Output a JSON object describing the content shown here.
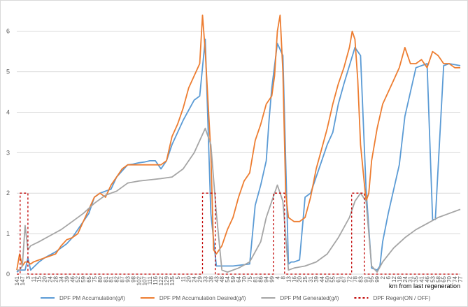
{
  "chart_data": {
    "type": "line",
    "xlabel": "km from last regeneration",
    "ylim": [
      0,
      6.6
    ],
    "y_ticks": [
      0,
      1,
      2,
      3,
      4,
      5,
      6
    ],
    "x_tick_labels": [
      "141",
      "147",
      "3",
      "11",
      "15",
      "20",
      "24",
      "28",
      "34",
      "39",
      "46",
      "52",
      "59",
      "65",
      "75",
      "80",
      "81",
      "81",
      "82",
      "87",
      "93",
      "98",
      "102",
      "107",
      "111",
      "116",
      "122",
      "129",
      "135",
      "5",
      "11",
      "20",
      "24",
      "29",
      "33",
      "38",
      "43",
      "48",
      "54",
      "59",
      "64",
      "70",
      "75",
      "81",
      "86",
      "94",
      "99",
      "4",
      "8",
      "13",
      "16",
      "20",
      "25",
      "31",
      "39",
      "44",
      "50",
      "55",
      "61",
      "67",
      "72",
      "78",
      "83",
      "91",
      "95",
      "99",
      "2",
      "6",
      "12",
      "18",
      "24",
      "31",
      "35",
      "41",
      "46",
      "53",
      "58",
      "65",
      "70",
      "74",
      "77"
    ],
    "legend_position": "bottom",
    "grid": "horizontal",
    "series": [
      {
        "name": "DPF PM Accumulation(g/l)",
        "color": "#5b9bd5",
        "dash": "",
        "x": [
          0,
          0.5,
          1,
          1.5,
          2,
          2.5,
          4,
          5,
          7,
          9,
          10,
          12,
          13,
          14,
          15,
          17,
          18,
          20,
          21,
          22,
          23,
          24,
          25,
          26,
          27,
          28,
          30,
          32,
          33,
          34,
          35,
          36,
          39,
          42,
          43,
          44,
          45,
          45.5,
          46,
          47,
          48,
          49,
          49.5,
          50,
          51,
          52,
          53,
          54,
          56,
          57,
          58,
          59,
          61,
          62,
          63,
          64,
          65,
          65.5,
          66,
          67,
          69,
          70,
          72,
          74,
          75,
          75.5,
          77,
          78,
          80
        ],
        "y": [
          0.05,
          0.1,
          0.1,
          0.1,
          0.4,
          0.1,
          0.3,
          0.4,
          0.55,
          0.75,
          0.9,
          1.3,
          1.5,
          1.9,
          2.0,
          2.1,
          2.4,
          2.7,
          2.72,
          2.75,
          2.77,
          2.8,
          2.8,
          2.6,
          2.8,
          3.2,
          3.8,
          4.3,
          4.4,
          5.8,
          1.5,
          0.2,
          0.2,
          0.25,
          1.7,
          2.2,
          2.8,
          3.8,
          4.6,
          5.7,
          5.4,
          0.25,
          0.3,
          0.3,
          0.35,
          1.9,
          2.0,
          2.4,
          3.2,
          3.5,
          4.2,
          4.7,
          5.6,
          5.4,
          2.1,
          0.15,
          0.1,
          0.2,
          0.8,
          1.5,
          2.7,
          3.9,
          5.1,
          5.2,
          1.35,
          1.35,
          5.15,
          5.2,
          5.15
        ]
      },
      {
        "name": "DPF PM Accumulation Desired(g/l)",
        "color": "#ed7d31",
        "dash": "",
        "x": [
          0,
          0.5,
          1,
          1.5,
          2,
          2.5,
          3,
          4,
          5,
          6,
          7,
          8,
          9,
          10,
          11,
          12,
          13,
          14,
          15,
          16,
          17,
          18,
          19,
          20,
          21,
          22,
          23,
          24,
          25,
          26,
          27,
          28,
          29,
          30,
          31,
          32,
          33,
          33.5,
          34,
          35,
          35.5,
          36,
          37,
          38,
          39,
          40,
          41,
          42,
          43,
          44,
          45,
          46,
          46.5,
          47,
          47.5,
          48,
          48.5,
          49,
          50,
          51,
          52,
          53,
          54,
          55,
          56,
          57,
          58,
          59,
          60,
          60.5,
          61,
          61.5,
          62,
          63,
          63.5,
          64,
          65,
          66,
          67,
          68,
          69,
          70,
          71,
          72,
          73,
          74,
          75,
          76,
          77,
          78,
          79,
          80
        ],
        "y": [
          0.1,
          0.5,
          0.2,
          0.3,
          0.3,
          0.25,
          0.3,
          0.35,
          0.4,
          0.45,
          0.5,
          0.7,
          0.85,
          0.9,
          1.0,
          1.3,
          1.6,
          1.9,
          2.0,
          1.9,
          2.2,
          2.4,
          2.6,
          2.7,
          2.7,
          2.7,
          2.7,
          2.7,
          2.7,
          2.7,
          2.8,
          3.4,
          3.7,
          4.1,
          4.6,
          4.9,
          5.2,
          6.4,
          5.5,
          3.0,
          0.6,
          0.5,
          0.7,
          1.1,
          1.4,
          1.9,
          2.3,
          2.5,
          3.3,
          3.7,
          4.2,
          4.4,
          4.9,
          6.0,
          6.4,
          5.0,
          2.0,
          1.4,
          1.3,
          1.3,
          1.4,
          1.9,
          2.6,
          3.1,
          3.6,
          4.2,
          4.7,
          5.1,
          5.6,
          6.0,
          5.8,
          4.8,
          3.2,
          1.8,
          2.0,
          2.8,
          3.6,
          4.2,
          4.5,
          4.8,
          5.1,
          5.6,
          5.2,
          5.2,
          5.3,
          5.1,
          5.5,
          5.4,
          5.2,
          5.2,
          5.1,
          5.1
        ]
      },
      {
        "name": "DPF PM Generated(g/l)",
        "color": "#a5a5a5",
        "dash": "",
        "x": [
          0,
          0.5,
          1,
          1.5,
          2,
          2.5,
          4,
          6,
          8,
          10,
          12,
          14,
          16,
          18,
          20,
          22,
          24,
          26,
          28,
          30,
          32,
          33,
          34,
          35,
          36,
          37,
          38,
          40,
          42,
          44,
          45,
          46,
          47,
          48,
          49,
          50,
          52,
          54,
          56,
          58,
          60,
          61,
          62,
          63,
          64,
          65,
          66,
          68,
          70,
          72,
          74,
          76,
          78,
          80
        ],
        "y": [
          0.1,
          0.1,
          0.2,
          1.2,
          0.6,
          0.7,
          0.8,
          0.95,
          1.1,
          1.3,
          1.5,
          1.75,
          1.95,
          2.05,
          2.25,
          2.3,
          2.33,
          2.36,
          2.4,
          2.6,
          3.0,
          3.3,
          3.6,
          3.2,
          1.5,
          0.1,
          0.05,
          0.15,
          0.3,
          0.8,
          1.4,
          1.8,
          2.2,
          1.8,
          0.1,
          0.15,
          0.2,
          0.3,
          0.5,
          0.9,
          1.4,
          1.8,
          2.0,
          1.8,
          0.2,
          0.05,
          0.3,
          0.65,
          0.9,
          1.1,
          1.25,
          1.4,
          1.5,
          1.6
        ]
      },
      {
        "name": "DPF Regen(ON / OFF)",
        "color": "#c00000",
        "dash": "3,3",
        "x": [
          0,
          0.6,
          0.6,
          2.0,
          2.0,
          33.5,
          33.5,
          35.8,
          35.8,
          46.3,
          46.3,
          48.3,
          48.3,
          60.4,
          60.4,
          62.7,
          62.7,
          80
        ],
        "y": [
          0,
          0,
          2,
          2,
          0,
          0,
          2,
          2,
          0,
          0,
          2,
          2,
          0,
          0,
          2,
          2,
          0,
          0
        ]
      }
    ]
  }
}
